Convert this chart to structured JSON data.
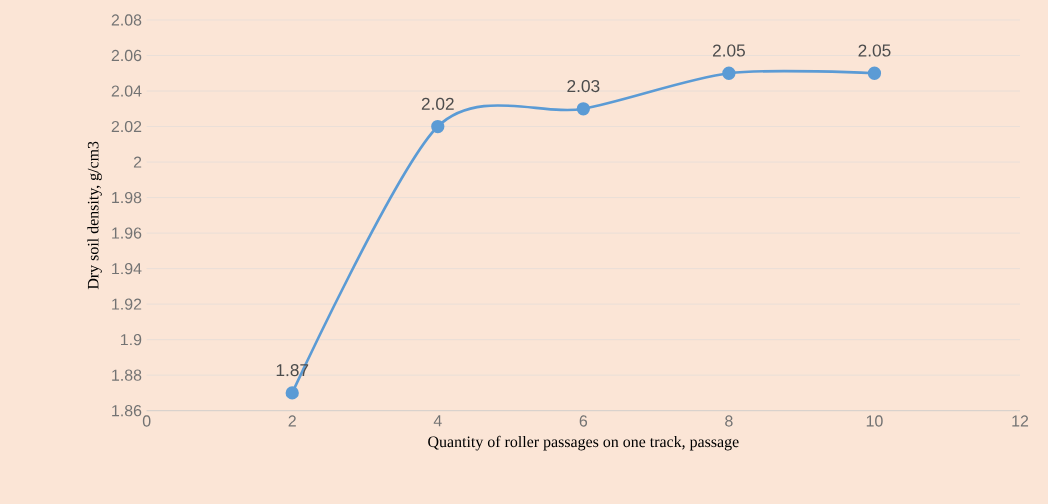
{
  "chart_data": {
    "type": "line",
    "xlabel": "Quantity of roller passages on one track, passage",
    "ylabel": "Dry soil density, g/cm3",
    "x": [
      2,
      4,
      6,
      8,
      10
    ],
    "values": [
      1.87,
      2.02,
      2.03,
      2.05,
      2.05
    ],
    "color": "#5b9bd5",
    "marker": "circle",
    "line_style": "solid",
    "data_labels": true,
    "xlim": [
      0,
      12
    ],
    "xticks": [
      0,
      2,
      4,
      6,
      8,
      10,
      12
    ],
    "ylim": [
      1.86,
      2.08
    ],
    "yticks": [
      1.86,
      1.88,
      1.9,
      1.92,
      1.94,
      1.96,
      1.98,
      2,
      2.02,
      2.04,
      2.06,
      2.08
    ],
    "grid": "y"
  }
}
